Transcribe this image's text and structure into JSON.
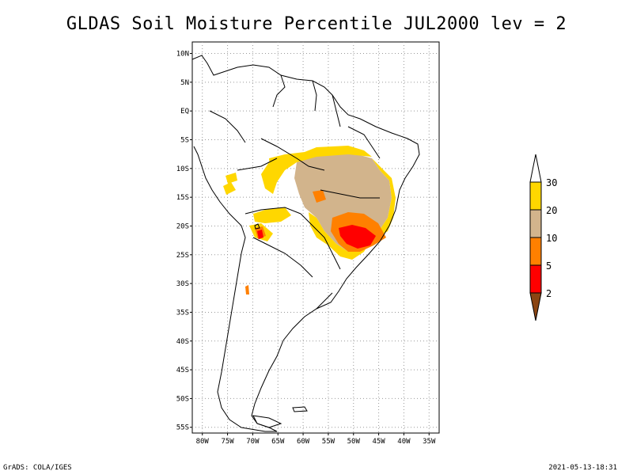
{
  "title": "GLDAS Soil Moisture Percentile JUL2000 lev = 2",
  "footer": {
    "left": "GrADS: COLA/IGES",
    "right": "2021-05-13-18:31"
  },
  "map": {
    "lat_labels": [
      "10N",
      "5N",
      "EQ",
      "5S",
      "10S",
      "15S",
      "20S",
      "25S",
      "30S",
      "35S",
      "40S",
      "45S",
      "50S",
      "55S"
    ],
    "lon_labels": [
      "80W",
      "75W",
      "70W",
      "65W",
      "60W",
      "55W",
      "50W",
      "45W",
      "40W",
      "35W"
    ],
    "lon_range": [
      -80,
      -35
    ],
    "lat_range": [
      -56,
      12
    ]
  },
  "colorbar": {
    "labels": [
      "2",
      "5",
      "10",
      "20",
      "30"
    ],
    "colors": [
      "#8b4513",
      "#ff0000",
      "#ff8000",
      "#d2b48c",
      "#ffd700",
      "#ffffff"
    ]
  }
}
